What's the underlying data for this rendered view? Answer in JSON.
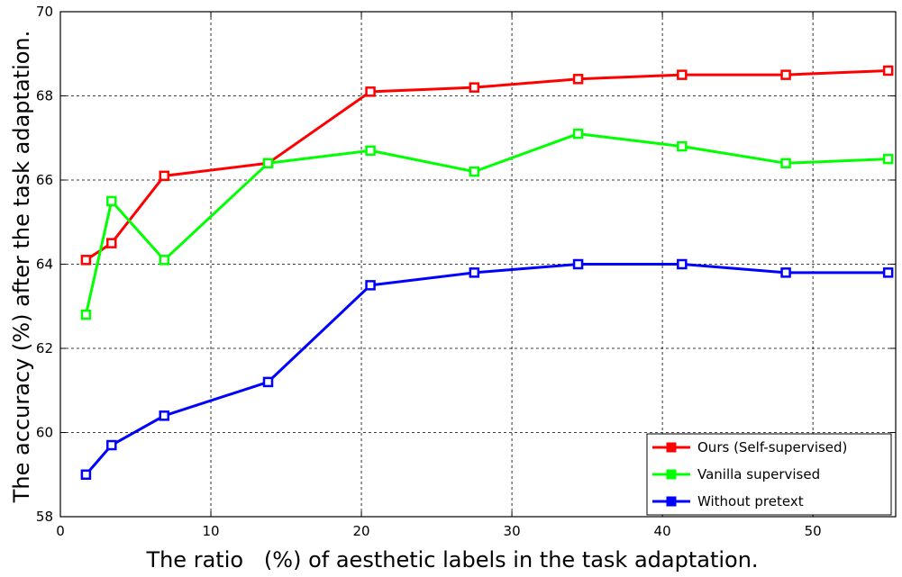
{
  "chart_data": {
    "type": "line",
    "title": "",
    "xlabel": "The ratio   (%) of aesthetic labels in the task adaptation.",
    "ylabel": "The accuracy (%) after the task adaptation.",
    "xlim": [
      0,
      55.5
    ],
    "ylim": [
      58,
      70
    ],
    "xticks": [
      0,
      10,
      20,
      30,
      40,
      50
    ],
    "yticks": [
      58,
      60,
      62,
      64,
      66,
      68,
      70
    ],
    "grid": true,
    "legend_position": "bottom-right",
    "x": [
      1.7,
      3.4,
      6.9,
      13.8,
      20.6,
      27.5,
      34.4,
      41.3,
      48.2,
      55.0
    ],
    "series": [
      {
        "name": "Ours (Self-supervised)",
        "color": "#ff0000",
        "values": [
          64.1,
          64.5,
          66.1,
          66.4,
          68.1,
          68.2,
          68.4,
          68.5,
          68.5,
          68.6
        ]
      },
      {
        "name": "Vanilla supervised",
        "color": "#00ff00",
        "values": [
          62.8,
          65.5,
          64.1,
          66.4,
          66.7,
          66.2,
          67.1,
          66.8,
          66.4,
          66.5
        ]
      },
      {
        "name": "Without pretext",
        "color": "#0000ff",
        "values": [
          59.0,
          59.7,
          60.4,
          61.2,
          63.5,
          63.8,
          64.0,
          64.0,
          63.8,
          63.8
        ]
      }
    ]
  }
}
